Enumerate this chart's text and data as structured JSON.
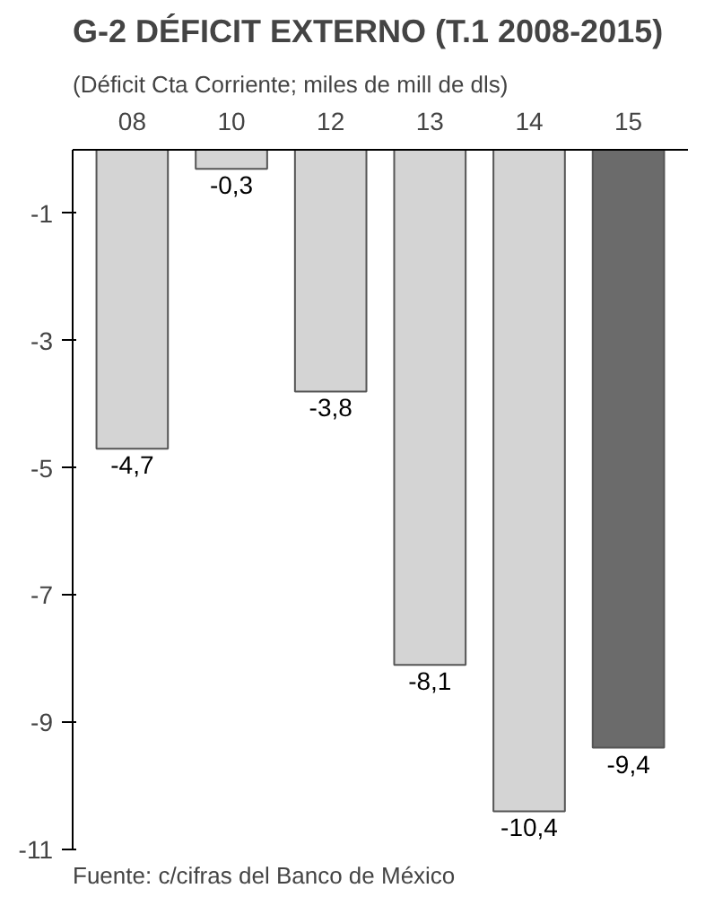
{
  "chart_data": {
    "type": "bar",
    "title": "G-2 DÉFICIT EXTERNO (T.1 2008-2015)",
    "subtitle": "(Déficit Cta Corriente; miles de mill de dls)",
    "categories": [
      "08",
      "10",
      "12",
      "13",
      "14",
      "15"
    ],
    "values": [
      -4.7,
      -0.3,
      -3.8,
      -8.1,
      -10.4,
      -9.4
    ],
    "colors": [
      "#d4d4d4",
      "#d4d4d4",
      "#d4d4d4",
      "#d4d4d4",
      "#d4d4d4",
      "#6b6b6b"
    ],
    "value_labels": [
      "-4,7",
      "-0,3",
      "-3,8",
      "-8,1",
      "-10,4",
      "-9,4"
    ],
    "ylim": [
      -11,
      0
    ],
    "yticks": [
      -1,
      -3,
      -5,
      -7,
      -9,
      -11
    ],
    "grid": false,
    "annotations": [
      "Fuente: c/cifras del Banco de México"
    ]
  }
}
